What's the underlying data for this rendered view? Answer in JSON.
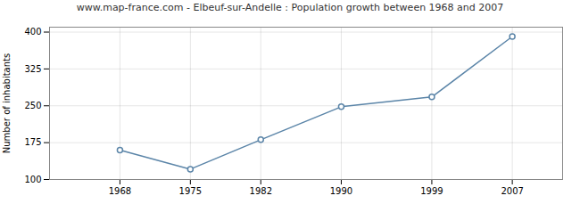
{
  "chart_data": {
    "type": "line",
    "title": "www.map-france.com - Elbeuf-sur-Andelle : Population growth between 1968 and 2007",
    "ylabel": "Number of inhabitants",
    "x": [
      1968,
      1975,
      1982,
      1990,
      1999,
      2007
    ],
    "values": [
      160,
      121,
      181,
      248,
      268,
      391
    ],
    "color": "#5b85a8",
    "marker": "circle",
    "xlim": [
      1961,
      2012
    ],
    "xticks": [
      1968,
      1975,
      1982,
      1990,
      1999,
      2007
    ],
    "ylim": [
      100,
      410
    ],
    "yticks": [
      100,
      175,
      250,
      325,
      400
    ],
    "grid": true
  }
}
